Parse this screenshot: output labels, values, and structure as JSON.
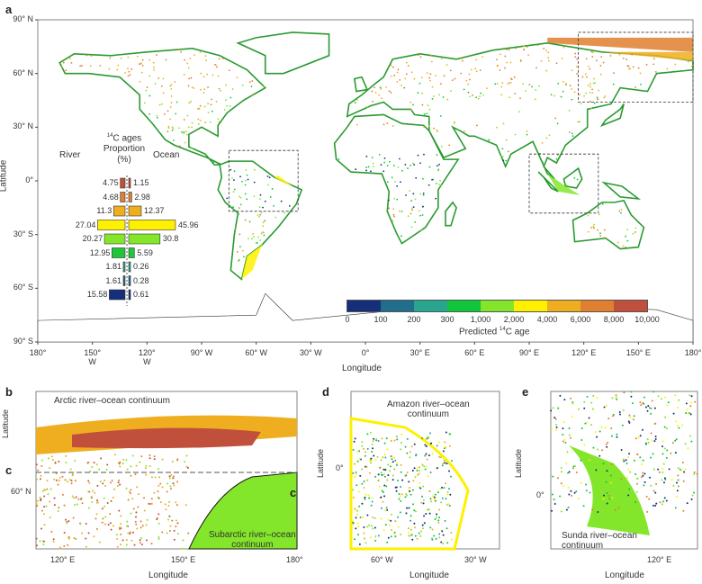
{
  "panels": {
    "a": "a",
    "b": "b",
    "c": "c",
    "d": "d",
    "e": "e"
  },
  "main_map": {
    "lon_ticks": [
      "180°",
      "150° W",
      "120° W",
      "90° W",
      "60° W",
      "30° W",
      "0°",
      "30° E",
      "60° E",
      "90° E",
      "120° E",
      "150° E",
      "180°"
    ],
    "lat_ticks": [
      "90° N",
      "60° N",
      "30° N",
      "0°",
      "30° S",
      "60° S",
      "90° S"
    ],
    "xlabel": "Longitude",
    "ylabel": "Latitude"
  },
  "inset": {
    "title_line1": "14C ages",
    "title_sup": "14",
    "title_rest": "C ages",
    "title_line2": "Proportion",
    "title_line3": "(%)",
    "left_label": "River",
    "right_label": "Ocean",
    "rows": [
      {
        "river": "4.75",
        "ocean": "1.15",
        "color": "#c0503c"
      },
      {
        "river": "4.68",
        "ocean": "2.98",
        "color": "#e07f30"
      },
      {
        "river": "11.3",
        "ocean": "12.37",
        "color": "#eeae1f"
      },
      {
        "river": "27.04",
        "ocean": "45.96",
        "color": "#fff000"
      },
      {
        "river": "20.27",
        "ocean": "30.8",
        "color": "#84e62a"
      },
      {
        "river": "12.95",
        "ocean": "5.59",
        "color": "#22c43a"
      },
      {
        "river": "1.81",
        "ocean": "0.26",
        "color": "#27a58e"
      },
      {
        "river": "1.61",
        "ocean": "0.28",
        "color": "#1f6f8c"
      },
      {
        "river": "15.58",
        "ocean": "0.61",
        "color": "#162f7a"
      }
    ]
  },
  "colorbar": {
    "ticks": [
      "0",
      "100",
      "200",
      "300",
      "1,000",
      "2,000",
      "4,000",
      "6,000",
      "8,000",
      "10,000"
    ],
    "colors": [
      "#162f7a",
      "#1f6f8c",
      "#27a58e",
      "#10c63a",
      "#84e62a",
      "#fff000",
      "#eeae1f",
      "#e07f30",
      "#c0503c"
    ],
    "label_pre": "Predicted ",
    "label_sup": "14",
    "label_post": "C age"
  },
  "panel_b": {
    "title": "Arctic river–ocean continuum",
    "subtitle_line1": "Subarctic river–ocean",
    "subtitle_line2": "continuum",
    "section_marker": "c",
    "lon_ticks": [
      "120° E",
      "150° E",
      "180°"
    ],
    "lat_tick": "60° N",
    "xlabel": "Longitude",
    "ylabel": "Latitude"
  },
  "panel_d": {
    "title_line1": "Amazon river–ocean",
    "title_line2": "continuum",
    "lon_ticks": [
      "60° W",
      "30° W"
    ],
    "lat_tick": "0°",
    "xlabel": "Longitude",
    "ylabel": "Latitude"
  },
  "panel_e": {
    "title_line1": "Sunda river–ocean",
    "title_line2": "continuum",
    "lon_tick": "120° E",
    "lat_tick": "0°",
    "xlabel": "Longitude",
    "ylabel": "Latitude"
  }
}
